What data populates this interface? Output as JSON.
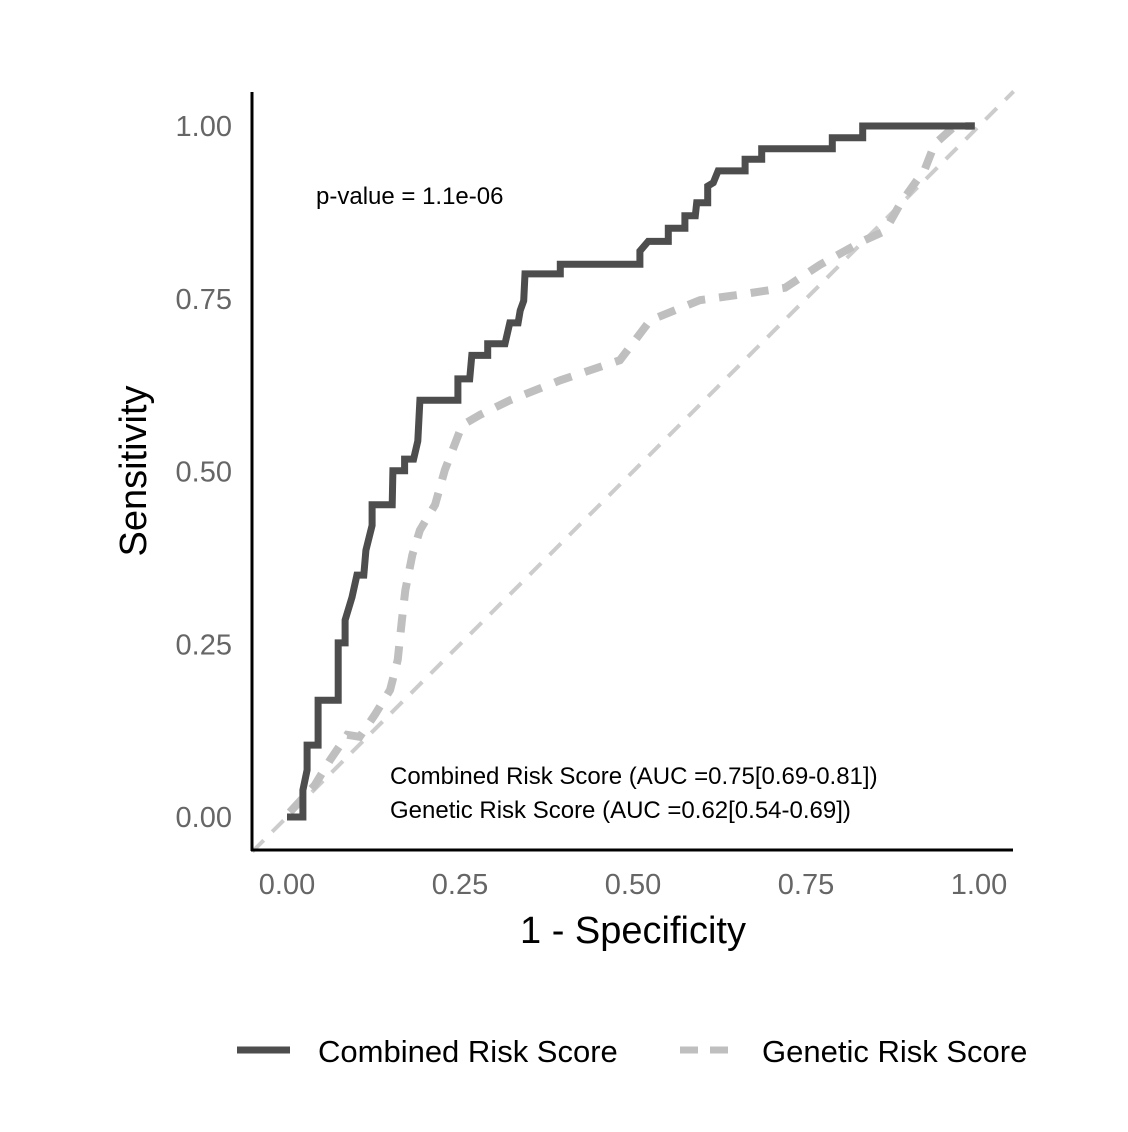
{
  "chart_data": {
    "type": "line",
    "title": "",
    "xlabel": "1 - Specificity",
    "ylabel": "Sensitivity",
    "xlim": [
      -0.05,
      1.05
    ],
    "ylim": [
      -0.05,
      1.05
    ],
    "xticks": [
      "0.00",
      "0.25",
      "0.50",
      "0.75",
      "1.00"
    ],
    "yticks": [
      "0.00",
      "0.25",
      "0.50",
      "0.75",
      "1.00"
    ],
    "grid": false,
    "legend_position": "bottom",
    "annotations": {
      "pvalue": "p-value = 1.1e-06",
      "auc_combined": "Combined Risk Score (AUC =0.75[0.69-0.81])",
      "auc_genetic": "Genetic Risk Score (AUC =0.62[0.54-0.69])"
    },
    "reference_line": {
      "name": "chance",
      "x": [
        -0.05,
        1.05
      ],
      "y": [
        -0.05,
        1.05
      ],
      "color": "#cccccc"
    },
    "series": [
      {
        "name": "Combined Risk Score",
        "color": "#4d4d4d",
        "style": "solid",
        "x": [
          0,
          0.023,
          0.023,
          0.029,
          0.029,
          0.045,
          0.045,
          0.074,
          0.074,
          0.084,
          0.084,
          0.094,
          0.101,
          0.111,
          0.114,
          0.123,
          0.123,
          0.152,
          0.153,
          0.17,
          0.17,
          0.183,
          0.189,
          0.192,
          0.247,
          0.247,
          0.264,
          0.267,
          0.29,
          0.29,
          0.315,
          0.322,
          0.334,
          0.337,
          0.342,
          0.344,
          0.395,
          0.395,
          0.51,
          0.51,
          0.522,
          0.551,
          0.551,
          0.575,
          0.575,
          0.59,
          0.592,
          0.608,
          0.608,
          0.616,
          0.623,
          0.662,
          0.662,
          0.686,
          0.686,
          0.788,
          0.788,
          0.832,
          0.832,
          0.994
        ],
        "y": [
          0,
          0,
          0.039,
          0.068,
          0.104,
          0.104,
          0.169,
          0.169,
          0.252,
          0.252,
          0.285,
          0.318,
          0.35,
          0.35,
          0.386,
          0.422,
          0.452,
          0.452,
          0.501,
          0.501,
          0.518,
          0.518,
          0.544,
          0.603,
          0.603,
          0.634,
          0.634,
          0.668,
          0.668,
          0.685,
          0.685,
          0.715,
          0.715,
          0.733,
          0.747,
          0.786,
          0.786,
          0.8,
          0.8,
          0.819,
          0.833,
          0.833,
          0.852,
          0.852,
          0.87,
          0.87,
          0.889,
          0.889,
          0.913,
          0.918,
          0.935,
          0.935,
          0.952,
          0.952,
          0.967,
          0.967,
          0.983,
          0.983,
          1,
          1
        ]
      },
      {
        "name": "Genetic Risk Score",
        "color": "#bfbfbf",
        "style": "dashed",
        "x": [
          0.004,
          0.04,
          0.062,
          0.087,
          0.105,
          0.127,
          0.149,
          0.16,
          0.166,
          0.171,
          0.181,
          0.192,
          0.214,
          0.228,
          0.253,
          0.279,
          0.322,
          0.395,
          0.481,
          0.525,
          0.597,
          0.655,
          0.72,
          0.77,
          0.831,
          0.864,
          0.886,
          0.922,
          0.936,
          0.965,
          0.994
        ],
        "y": [
          0.007,
          0.046,
          0.082,
          0.119,
          0.116,
          0.148,
          0.184,
          0.227,
          0.285,
          0.328,
          0.379,
          0.415,
          0.452,
          0.502,
          0.567,
          0.582,
          0.603,
          0.632,
          0.661,
          0.719,
          0.748,
          0.756,
          0.766,
          0.799,
          0.833,
          0.848,
          0.887,
          0.938,
          0.974,
          1,
          1
        ]
      }
    ]
  }
}
